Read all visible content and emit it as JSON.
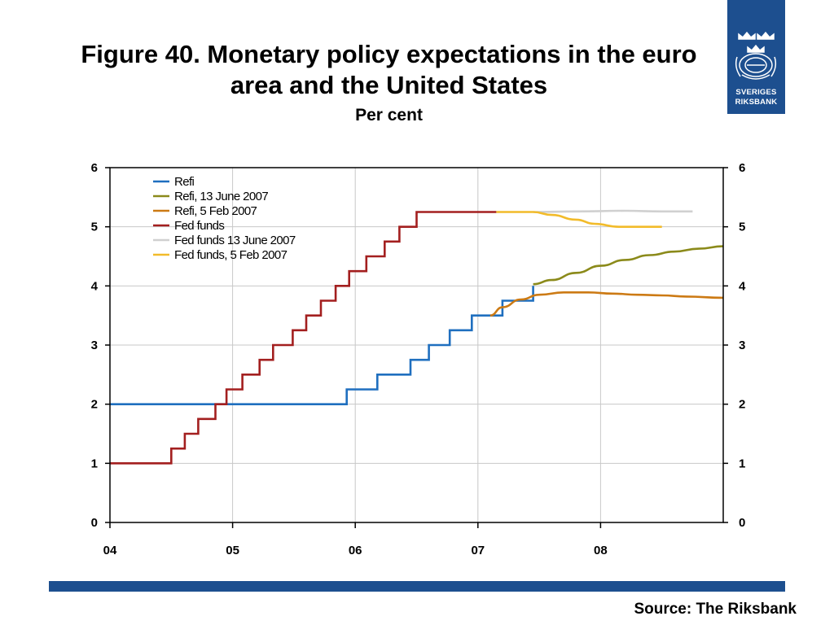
{
  "title_lines": [
    "Figure 40. Monetary policy expectations in the euro",
    "area and the United States"
  ],
  "subtitle": "Per cent",
  "logo": {
    "icon": "crown-seal-icon",
    "line1": "SVERIGES",
    "line2": "RIKSBANK"
  },
  "source": "Source: The Riksbank",
  "colors": {
    "brand": "#1d4f8f"
  },
  "chart_data": {
    "type": "line",
    "xlim": [
      2004.0,
      2009.0
    ],
    "ylim": [
      0,
      6
    ],
    "yticks": [
      0,
      1,
      2,
      3,
      4,
      5,
      6
    ],
    "xticks": [
      {
        "value": 2004.0,
        "label": "04"
      },
      {
        "value": 2005.0,
        "label": "05"
      },
      {
        "value": 2006.0,
        "label": "06"
      },
      {
        "value": 2007.0,
        "label": "07"
      },
      {
        "value": 2008.0,
        "label": "08"
      }
    ],
    "grid": {
      "horizontal": true,
      "vertical": true
    },
    "legend_position": "top-left",
    "series": [
      {
        "name": "Refi",
        "color": "#1f6fbf",
        "step": true,
        "points": [
          [
            2004.0,
            2.0
          ],
          [
            2005.93,
            2.0
          ],
          [
            2005.93,
            2.25
          ],
          [
            2006.18,
            2.25
          ],
          [
            2006.18,
            2.5
          ],
          [
            2006.45,
            2.5
          ],
          [
            2006.45,
            2.75
          ],
          [
            2006.6,
            2.75
          ],
          [
            2006.6,
            3.0
          ],
          [
            2006.77,
            3.0
          ],
          [
            2006.77,
            3.25
          ],
          [
            2006.95,
            3.25
          ],
          [
            2006.95,
            3.5
          ],
          [
            2007.2,
            3.5
          ],
          [
            2007.2,
            3.75
          ],
          [
            2007.45,
            3.75
          ],
          [
            2007.45,
            4.0
          ]
        ]
      },
      {
        "name": "Refi, 13 June 2007",
        "color": "#8b8a1a",
        "step": false,
        "points": [
          [
            2007.45,
            4.03
          ],
          [
            2007.6,
            4.1
          ],
          [
            2007.8,
            4.22
          ],
          [
            2008.0,
            4.34
          ],
          [
            2008.2,
            4.44
          ],
          [
            2008.4,
            4.52
          ],
          [
            2008.6,
            4.58
          ],
          [
            2008.8,
            4.63
          ],
          [
            2009.0,
            4.67
          ]
        ]
      },
      {
        "name": "Refi, 5 Feb 2007",
        "color": "#cc7a14",
        "step": false,
        "points": [
          [
            2007.1,
            3.5
          ],
          [
            2007.2,
            3.64
          ],
          [
            2007.35,
            3.77
          ],
          [
            2007.5,
            3.85
          ],
          [
            2007.7,
            3.89
          ],
          [
            2007.9,
            3.89
          ],
          [
            2008.1,
            3.87
          ],
          [
            2008.3,
            3.85
          ],
          [
            2008.5,
            3.84
          ],
          [
            2008.7,
            3.82
          ],
          [
            2009.0,
            3.8
          ]
        ]
      },
      {
        "name": "Fed funds",
        "color": "#a31f1f",
        "step": true,
        "points": [
          [
            2004.0,
            1.0
          ],
          [
            2004.5,
            1.0
          ],
          [
            2004.5,
            1.25
          ],
          [
            2004.61,
            1.25
          ],
          [
            2004.61,
            1.5
          ],
          [
            2004.72,
            1.5
          ],
          [
            2004.72,
            1.75
          ],
          [
            2004.86,
            1.75
          ],
          [
            2004.86,
            2.0
          ],
          [
            2004.95,
            2.0
          ],
          [
            2004.95,
            2.25
          ],
          [
            2005.08,
            2.25
          ],
          [
            2005.08,
            2.5
          ],
          [
            2005.22,
            2.5
          ],
          [
            2005.22,
            2.75
          ],
          [
            2005.33,
            2.75
          ],
          [
            2005.33,
            3.0
          ],
          [
            2005.49,
            3.0
          ],
          [
            2005.49,
            3.25
          ],
          [
            2005.6,
            3.25
          ],
          [
            2005.6,
            3.5
          ],
          [
            2005.72,
            3.5
          ],
          [
            2005.72,
            3.75
          ],
          [
            2005.84,
            3.75
          ],
          [
            2005.84,
            4.0
          ],
          [
            2005.95,
            4.0
          ],
          [
            2005.95,
            4.25
          ],
          [
            2006.09,
            4.25
          ],
          [
            2006.09,
            4.5
          ],
          [
            2006.24,
            4.5
          ],
          [
            2006.24,
            4.75
          ],
          [
            2006.36,
            4.75
          ],
          [
            2006.36,
            5.0
          ],
          [
            2006.5,
            5.0
          ],
          [
            2006.5,
            5.25
          ],
          [
            2007.15,
            5.25
          ]
        ]
      },
      {
        "name": "Fed funds 13 June 2007",
        "color": "#d0d0d0",
        "step": false,
        "points": [
          [
            2007.45,
            5.25
          ],
          [
            2007.8,
            5.26
          ],
          [
            2008.2,
            5.27
          ],
          [
            2008.5,
            5.26
          ],
          [
            2008.75,
            5.26
          ]
        ]
      },
      {
        "name": "Fed funds, 5 Feb 2007",
        "color": "#f2bb2a",
        "step": false,
        "points": [
          [
            2007.15,
            5.25
          ],
          [
            2007.45,
            5.25
          ],
          [
            2007.6,
            5.2
          ],
          [
            2007.8,
            5.12
          ],
          [
            2007.95,
            5.05
          ],
          [
            2008.15,
            5.0
          ],
          [
            2008.3,
            5.0
          ],
          [
            2008.5,
            5.0
          ]
        ]
      }
    ]
  }
}
